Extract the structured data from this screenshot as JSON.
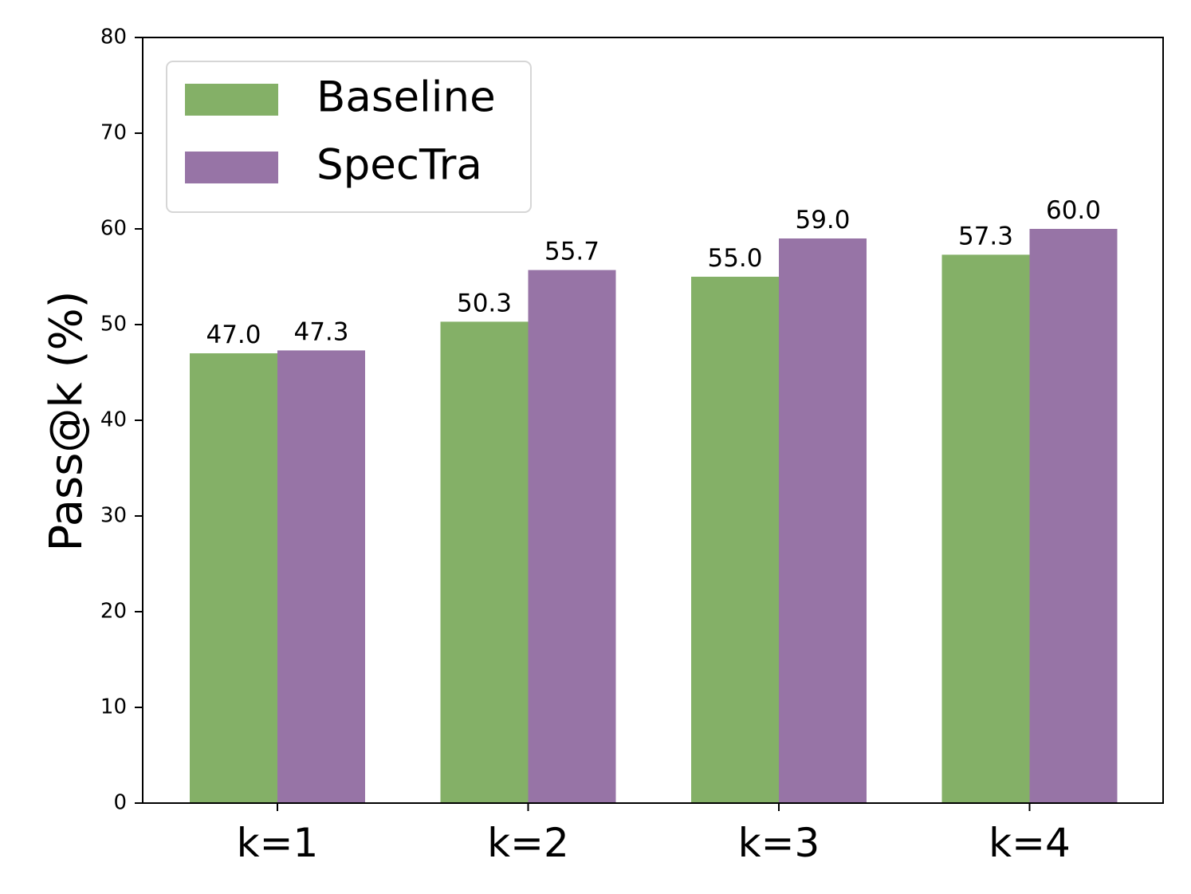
{
  "chart_data": {
    "type": "bar",
    "categories": [
      "k=1",
      "k=2",
      "k=3",
      "k=4"
    ],
    "series": [
      {
        "name": "Baseline",
        "values": [
          47.0,
          50.3,
          55.0,
          57.3
        ],
        "color": "#84b067"
      },
      {
        "name": "SpecTra",
        "values": [
          47.3,
          55.7,
          59.0,
          60.0
        ],
        "color": "#9774a6"
      }
    ],
    "data_labels": [
      [
        "47.0",
        "50.3",
        "55.0",
        "57.3"
      ],
      [
        "47.3",
        "55.7",
        "59.0",
        "60.0"
      ]
    ],
    "title": "",
    "xlabel": "",
    "ylabel": "Pass@k (%)",
    "ylim": [
      0,
      80
    ],
    "yticks": [
      "0",
      "10",
      "20",
      "30",
      "40",
      "50",
      "60",
      "70",
      "80"
    ],
    "grid": false,
    "legend_position": "upper-left"
  }
}
